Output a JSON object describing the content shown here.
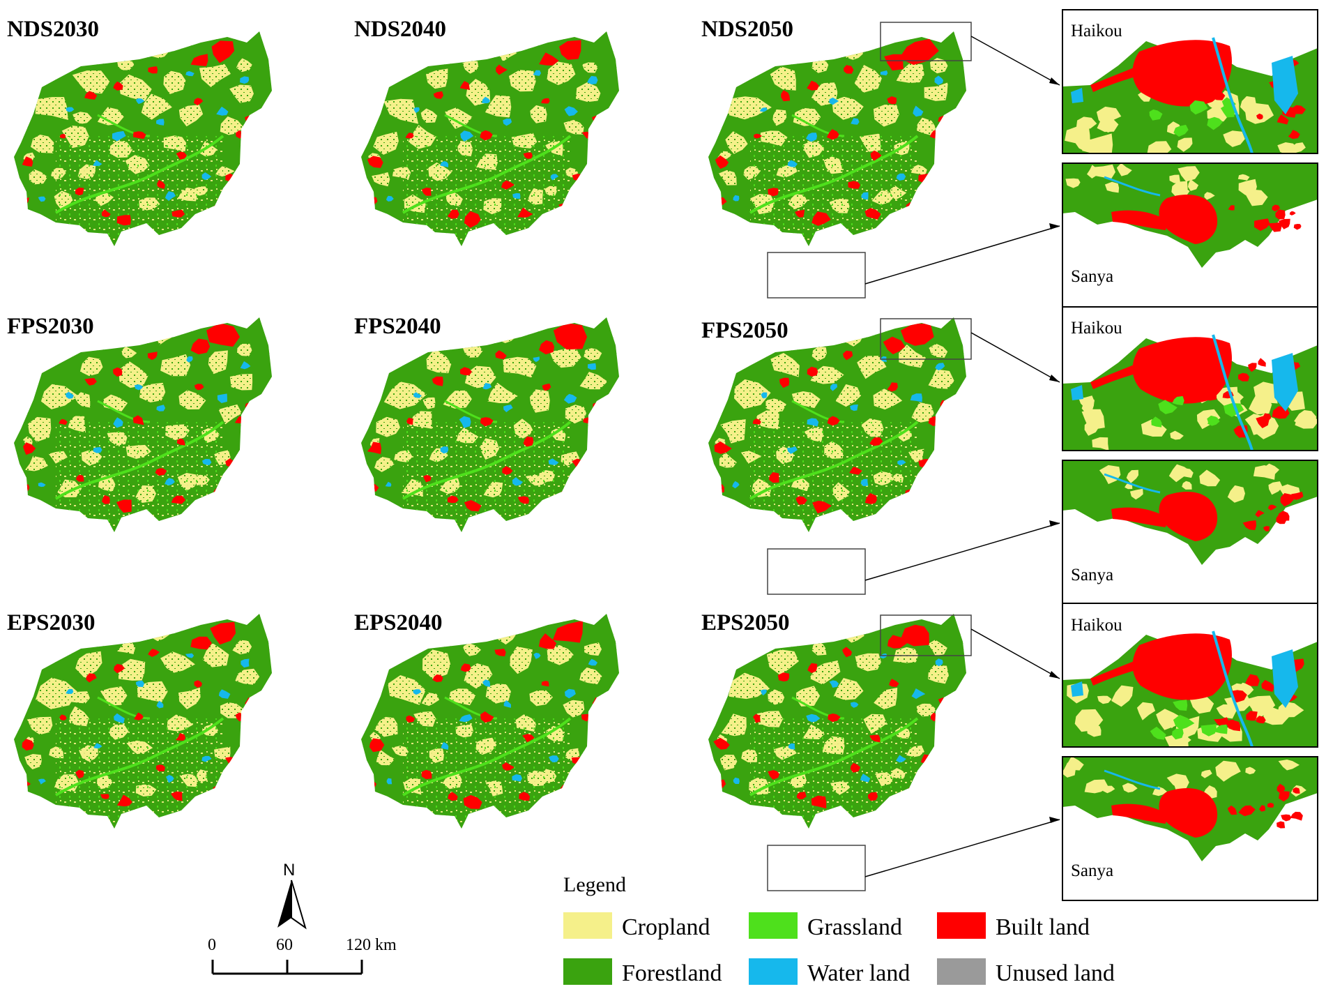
{
  "panels": [
    {
      "title": "NDS2030"
    },
    {
      "title": "NDS2040"
    },
    {
      "title": "NDS2050"
    },
    {
      "title": "FPS2030"
    },
    {
      "title": "FPS2040"
    },
    {
      "title": "FPS2050"
    },
    {
      "title": "EPS2030"
    },
    {
      "title": "EPS2040"
    },
    {
      "title": "EPS2050"
    }
  ],
  "insets": {
    "north_label": "Haikou",
    "south_label": "Sanya"
  },
  "legend": {
    "title": "Legend",
    "items": [
      {
        "label": "Cropland",
        "color": "#f5f08a"
      },
      {
        "label": "Grassland",
        "color": "#4ee01c"
      },
      {
        "label": "Built land",
        "color": "#ff0000"
      },
      {
        "label": "Forestland",
        "color": "#3aa30f"
      },
      {
        "label": "Water land",
        "color": "#16b8ec"
      },
      {
        "label": "Unused land",
        "color": "#9a9a9a"
      }
    ]
  },
  "scale_bar": {
    "ticks": [
      "0",
      "60",
      "120 km"
    ]
  },
  "north_arrow": {
    "label": "N"
  },
  "colors": {
    "cropland": "#f5f08a",
    "forestland": "#3aa30f",
    "grassland": "#4ee01c",
    "built": "#ff0000",
    "water": "#16b8ec"
  }
}
